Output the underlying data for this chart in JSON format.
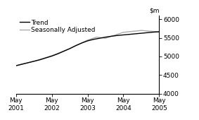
{
  "ylim": [
    4000,
    6100
  ],
  "yticks": [
    4000,
    4500,
    5000,
    5500,
    6000
  ],
  "xlim": [
    0,
    48
  ],
  "xticks": [
    0,
    12,
    24,
    36,
    48
  ],
  "xtick_labels": [
    "May\n2001",
    "May\n2002",
    "May\n2003",
    "May\n2004",
    "May\n2005"
  ],
  "trend_x": [
    0,
    2,
    4,
    6,
    8,
    10,
    12,
    14,
    16,
    18,
    20,
    22,
    24,
    26,
    28,
    30,
    32,
    34,
    36,
    38,
    40,
    42,
    44,
    46,
    48
  ],
  "trend_y": [
    4750,
    4790,
    4830,
    4870,
    4910,
    4960,
    5010,
    5070,
    5140,
    5210,
    5290,
    5360,
    5420,
    5460,
    5490,
    5520,
    5545,
    5565,
    5580,
    5595,
    5610,
    5625,
    5640,
    5655,
    5665
  ],
  "seasonal_x": [
    0,
    6,
    12,
    18,
    24,
    27,
    30,
    36,
    42,
    48
  ],
  "seasonal_y": [
    4755,
    4870,
    5020,
    5210,
    5440,
    5520,
    5490,
    5650,
    5700,
    5660
  ],
  "trend_color": "#000000",
  "seasonal_color": "#aaaaaa",
  "trend_lw": 1.0,
  "seasonal_lw": 1.0,
  "legend_fontsize": 6.5,
  "tick_fontsize": 6.5,
  "background_color": "#ffffff"
}
